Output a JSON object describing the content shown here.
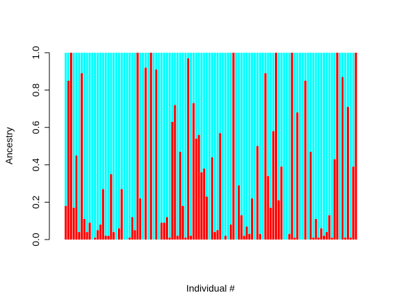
{
  "chart_data": {
    "type": "bar",
    "stacked": true,
    "xlabel": "Individual #",
    "ylabel": "Ancestry",
    "ylim": [
      0,
      1
    ],
    "yticks": [
      0.0,
      0.2,
      0.4,
      0.6,
      0.8,
      1.0
    ],
    "ytick_labels": [
      "0.0",
      "0.2",
      "0.4",
      "0.6",
      "0.8",
      "1.0"
    ],
    "grid": false,
    "legend": "none",
    "colors": {
      "component_1": "#ff0000",
      "component_2": "#00ffff"
    },
    "component_1_values": [
      0.18,
      0.85,
      1.0,
      0.17,
      0.45,
      0.04,
      0.89,
      0.11,
      0.04,
      0.09,
      0.0,
      0.01,
      0.05,
      0.08,
      0.27,
      0.02,
      0.02,
      0.35,
      0.04,
      0.0,
      0.06,
      0.27,
      0.0,
      0.0,
      0.01,
      0.12,
      0.05,
      1.0,
      0.22,
      0.0,
      0.92,
      0.0,
      1.0,
      0.0,
      0.91,
      0.0,
      0.09,
      0.09,
      0.12,
      0.01,
      0.63,
      0.72,
      0.02,
      0.47,
      0.18,
      0.01,
      0.97,
      0.02,
      0.73,
      0.54,
      0.56,
      0.36,
      0.38,
      0.23,
      0.0,
      0.44,
      0.04,
      0.05,
      0.57,
      0.0,
      0.02,
      0.0,
      0.08,
      1.0,
      0.0,
      0.29,
      0.13,
      0.02,
      0.07,
      0.03,
      0.22,
      0.0,
      0.5,
      0.03,
      0.0,
      0.89,
      0.34,
      0.17,
      0.58,
      1.0,
      0.21,
      0.39,
      0.0,
      0.0,
      0.03,
      1.0,
      0.01,
      0.68,
      0.0,
      0.0,
      0.85,
      0.0,
      0.47,
      0.01,
      0.11,
      0.01,
      0.06,
      0.02,
      0.04,
      0.13,
      0.01,
      0.43,
      1.0,
      0.0,
      0.87,
      0.01,
      0.71,
      0.01,
      0.39,
      1.0
    ]
  }
}
